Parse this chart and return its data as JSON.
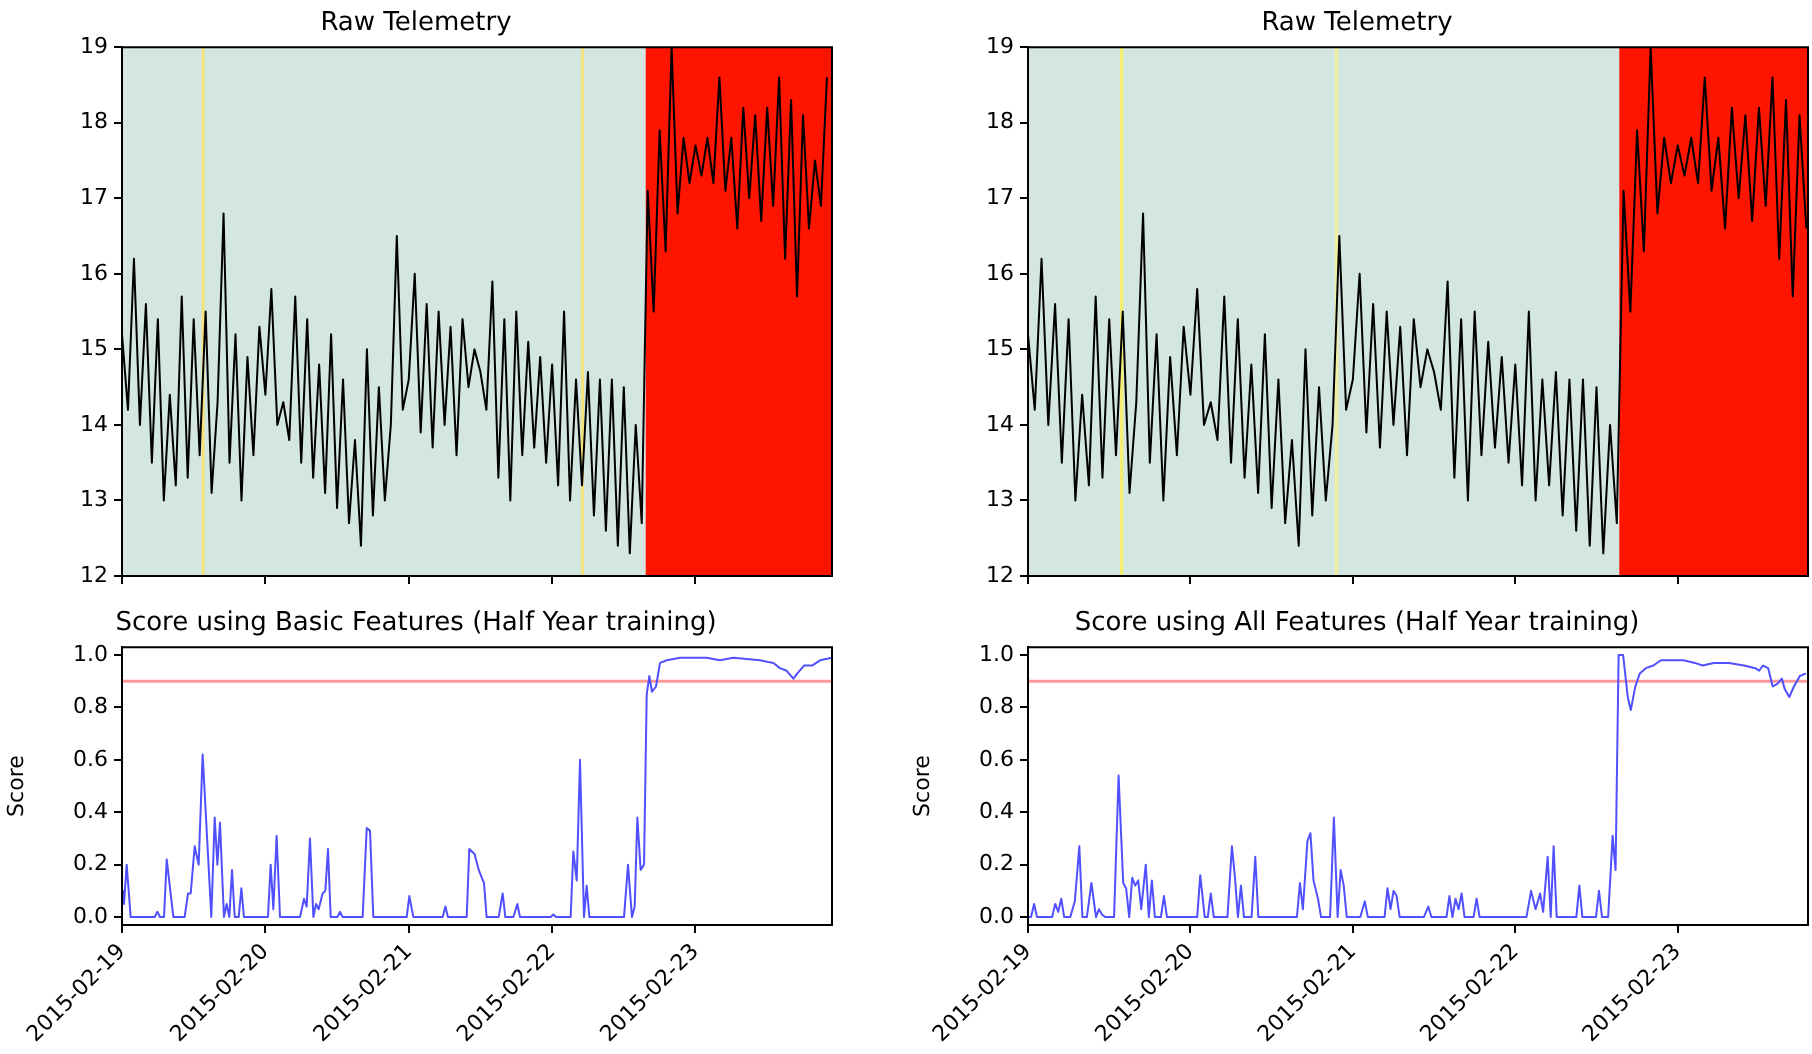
{
  "chart_data": [
    {
      "type": "line",
      "title": "Raw Telemetry",
      "marker": "none",
      "tick_labels": "y",
      "grid": false,
      "legend": false,
      "x": [
        "2015-02-19T00:00",
        "2015-02-19T01:00",
        "2015-02-19T02:00",
        "2015-02-19T03:00",
        "2015-02-19T04:00",
        "2015-02-19T05:00",
        "2015-02-19T06:00",
        "2015-02-19T07:00",
        "2015-02-19T08:00",
        "2015-02-19T09:00",
        "2015-02-19T10:00",
        "2015-02-19T11:00",
        "2015-02-19T12:00",
        "2015-02-19T13:00",
        "2015-02-19T14:00",
        "2015-02-19T15:00",
        "2015-02-19T16:00",
        "2015-02-19T17:00",
        "2015-02-19T18:00",
        "2015-02-19T19:00",
        "2015-02-19T20:00",
        "2015-02-19T21:00",
        "2015-02-19T22:00",
        "2015-02-19T23:00",
        "2015-02-20T00:00",
        "2015-02-20T01:00",
        "2015-02-20T02:00",
        "2015-02-20T03:00",
        "2015-02-20T04:00",
        "2015-02-20T05:00",
        "2015-02-20T06:00",
        "2015-02-20T07:00",
        "2015-02-20T08:00",
        "2015-02-20T09:00",
        "2015-02-20T10:00",
        "2015-02-20T11:00",
        "2015-02-20T12:00",
        "2015-02-20T13:00",
        "2015-02-20T14:00",
        "2015-02-20T15:00",
        "2015-02-20T16:00",
        "2015-02-20T17:00",
        "2015-02-20T18:00",
        "2015-02-20T19:00",
        "2015-02-20T20:00",
        "2015-02-20T21:00",
        "2015-02-20T22:00",
        "2015-02-20T23:00",
        "2015-02-21T00:00",
        "2015-02-21T01:00",
        "2015-02-21T02:00",
        "2015-02-21T03:00",
        "2015-02-21T04:00",
        "2015-02-21T05:00",
        "2015-02-21T06:00",
        "2015-02-21T07:00",
        "2015-02-21T08:00",
        "2015-02-21T09:00",
        "2015-02-21T10:00",
        "2015-02-21T11:00",
        "2015-02-21T12:00",
        "2015-02-21T13:00",
        "2015-02-21T14:00",
        "2015-02-21T15:00",
        "2015-02-21T16:00",
        "2015-02-21T17:00",
        "2015-02-21T18:00",
        "2015-02-21T19:00",
        "2015-02-21T20:00",
        "2015-02-21T21:00",
        "2015-02-21T22:00",
        "2015-02-21T23:00",
        "2015-02-22T00:00",
        "2015-02-22T01:00",
        "2015-02-22T02:00",
        "2015-02-22T03:00",
        "2015-02-22T04:00",
        "2015-02-22T05:00",
        "2015-02-22T06:00",
        "2015-02-22T07:00",
        "2015-02-22T08:00",
        "2015-02-22T09:00",
        "2015-02-22T10:00",
        "2015-02-22T11:00",
        "2015-02-22T12:00",
        "2015-02-22T13:00",
        "2015-02-22T14:00",
        "2015-02-22T15:00",
        "2015-02-22T16:00",
        "2015-02-22T17:00",
        "2015-02-22T18:00",
        "2015-02-22T19:00",
        "2015-02-22T20:00",
        "2015-02-22T21:00",
        "2015-02-22T22:00",
        "2015-02-22T23:00",
        "2015-02-23T00:00",
        "2015-02-23T01:00",
        "2015-02-23T02:00",
        "2015-02-23T03:00",
        "2015-02-23T04:00",
        "2015-02-23T05:00",
        "2015-02-23T06:00",
        "2015-02-23T07:00",
        "2015-02-23T08:00",
        "2015-02-23T09:00",
        "2015-02-23T10:00",
        "2015-02-23T11:00",
        "2015-02-23T12:00",
        "2015-02-23T13:00",
        "2015-02-23T14:00",
        "2015-02-23T15:00",
        "2015-02-23T16:00",
        "2015-02-23T17:00",
        "2015-02-23T18:00",
        "2015-02-23T19:00",
        "2015-02-23T20:00",
        "2015-02-23T21:00",
        "2015-02-23T22:00"
      ],
      "series": [
        {
          "color": "#000000",
          "values": [
            15.2,
            14.2,
            16.2,
            14.0,
            15.6,
            13.5,
            15.4,
            13.0,
            14.4,
            13.2,
            15.7,
            13.3,
            15.4,
            13.6,
            15.5,
            13.1,
            14.3,
            16.8,
            13.5,
            15.2,
            13.0,
            14.9,
            13.6,
            15.3,
            14.4,
            15.8,
            14.0,
            14.3,
            13.8,
            15.7,
            13.5,
            15.4,
            13.3,
            14.8,
            13.1,
            15.2,
            12.9,
            14.6,
            12.7,
            13.8,
            12.4,
            15.0,
            12.8,
            14.5,
            13.0,
            14.0,
            16.5,
            14.2,
            14.6,
            16.0,
            13.9,
            15.6,
            13.7,
            15.5,
            14.0,
            15.3,
            13.6,
            15.4,
            14.5,
            15.0,
            14.7,
            14.2,
            15.9,
            13.3,
            15.4,
            13.0,
            15.5,
            13.6,
            15.1,
            13.7,
            14.9,
            13.5,
            14.8,
            13.2,
            15.5,
            13.0,
            14.6,
            13.2,
            14.7,
            12.8,
            14.6,
            12.6,
            14.6,
            12.4,
            14.5,
            12.3,
            14.0,
            12.7,
            17.1,
            15.5,
            17.9,
            16.3,
            19.0,
            16.8,
            17.8,
            17.2,
            17.7,
            17.3,
            17.8,
            17.2,
            18.6,
            17.1,
            17.8,
            16.6,
            18.2,
            17.0,
            18.1,
            16.7,
            18.2,
            16.9,
            18.6,
            16.2,
            18.3,
            15.7,
            18.1,
            16.6,
            17.5,
            16.9,
            18.6
          ]
        }
      ],
      "bands": [
        {
          "axis": "x",
          "from": "2015-02-19T00:00",
          "to": "2015-02-22T15:40",
          "color": "#d3e6e2"
        },
        {
          "axis": "x",
          "from": "2015-02-19T13:20",
          "to": "2015-02-19T13:50",
          "color": "#f5e27a"
        },
        {
          "axis": "x",
          "from": "2015-02-22T04:50",
          "to": "2015-02-22T05:20",
          "color": "#f5e27a"
        },
        {
          "axis": "x",
          "from": "2015-02-22T15:40",
          "to": "2015-02-23T22:51",
          "color": "#ff1400"
        }
      ],
      "xlim": [
        "2015-02-19T00:00",
        "2015-02-23T22:51"
      ],
      "xticks": [
        "2015-02-19",
        "2015-02-20",
        "2015-02-21",
        "2015-02-22",
        "2015-02-23"
      ],
      "ylim": [
        12,
        19
      ],
      "yticks": [
        12,
        13,
        14,
        15,
        16,
        17,
        18,
        19
      ]
    },
    {
      "type": "line",
      "title": "Raw Telemetry",
      "marker": "none",
      "tick_labels": "y",
      "grid": false,
      "legend": false,
      "x": [
        "2015-02-19T00:00",
        "2015-02-19T01:00",
        "2015-02-19T02:00",
        "2015-02-19T03:00",
        "2015-02-19T04:00",
        "2015-02-19T05:00",
        "2015-02-19T06:00",
        "2015-02-19T07:00",
        "2015-02-19T08:00",
        "2015-02-19T09:00",
        "2015-02-19T10:00",
        "2015-02-19T11:00",
        "2015-02-19T12:00",
        "2015-02-19T13:00",
        "2015-02-19T14:00",
        "2015-02-19T15:00",
        "2015-02-19T16:00",
        "2015-02-19T17:00",
        "2015-02-19T18:00",
        "2015-02-19T19:00",
        "2015-02-19T20:00",
        "2015-02-19T21:00",
        "2015-02-19T22:00",
        "2015-02-19T23:00",
        "2015-02-20T00:00",
        "2015-02-20T01:00",
        "2015-02-20T02:00",
        "2015-02-20T03:00",
        "2015-02-20T04:00",
        "2015-02-20T05:00",
        "2015-02-20T06:00",
        "2015-02-20T07:00",
        "2015-02-20T08:00",
        "2015-02-20T09:00",
        "2015-02-20T10:00",
        "2015-02-20T11:00",
        "2015-02-20T12:00",
        "2015-02-20T13:00",
        "2015-02-20T14:00",
        "2015-02-20T15:00",
        "2015-02-20T16:00",
        "2015-02-20T17:00",
        "2015-02-20T18:00",
        "2015-02-20T19:00",
        "2015-02-20T20:00",
        "2015-02-20T21:00",
        "2015-02-20T22:00",
        "2015-02-20T23:00",
        "2015-02-21T00:00",
        "2015-02-21T01:00",
        "2015-02-21T02:00",
        "2015-02-21T03:00",
        "2015-02-21T04:00",
        "2015-02-21T05:00",
        "2015-02-21T06:00",
        "2015-02-21T07:00",
        "2015-02-21T08:00",
        "2015-02-21T09:00",
        "2015-02-21T10:00",
        "2015-02-21T11:00",
        "2015-02-21T12:00",
        "2015-02-21T13:00",
        "2015-02-21T14:00",
        "2015-02-21T15:00",
        "2015-02-21T16:00",
        "2015-02-21T17:00",
        "2015-02-21T18:00",
        "2015-02-21T19:00",
        "2015-02-21T20:00",
        "2015-02-21T21:00",
        "2015-02-21T22:00",
        "2015-02-21T23:00",
        "2015-02-22T00:00",
        "2015-02-22T01:00",
        "2015-02-22T02:00",
        "2015-02-22T03:00",
        "2015-02-22T04:00",
        "2015-02-22T05:00",
        "2015-02-22T06:00",
        "2015-02-22T07:00",
        "2015-02-22T08:00",
        "2015-02-22T09:00",
        "2015-02-22T10:00",
        "2015-02-22T11:00",
        "2015-02-22T12:00",
        "2015-02-22T13:00",
        "2015-02-22T14:00",
        "2015-02-22T15:00",
        "2015-02-22T16:00",
        "2015-02-22T17:00",
        "2015-02-22T18:00",
        "2015-02-22T19:00",
        "2015-02-22T20:00",
        "2015-02-22T21:00",
        "2015-02-22T22:00",
        "2015-02-22T23:00",
        "2015-02-23T00:00",
        "2015-02-23T01:00",
        "2015-02-23T02:00",
        "2015-02-23T03:00",
        "2015-02-23T04:00",
        "2015-02-23T05:00",
        "2015-02-23T06:00",
        "2015-02-23T07:00",
        "2015-02-23T08:00",
        "2015-02-23T09:00",
        "2015-02-23T10:00",
        "2015-02-23T11:00",
        "2015-02-23T12:00",
        "2015-02-23T13:00",
        "2015-02-23T14:00",
        "2015-02-23T15:00",
        "2015-02-23T16:00",
        "2015-02-23T17:00",
        "2015-02-23T18:00",
        "2015-02-23T19:00"
      ],
      "series": [
        {
          "color": "#000000",
          "values": [
            15.2,
            14.2,
            16.2,
            14.0,
            15.6,
            13.5,
            15.4,
            13.0,
            14.4,
            13.2,
            15.7,
            13.3,
            15.4,
            13.6,
            15.5,
            13.1,
            14.3,
            16.8,
            13.5,
            15.2,
            13.0,
            14.9,
            13.6,
            15.3,
            14.4,
            15.8,
            14.0,
            14.3,
            13.8,
            15.7,
            13.5,
            15.4,
            13.3,
            14.8,
            13.1,
            15.2,
            12.9,
            14.6,
            12.7,
            13.8,
            12.4,
            15.0,
            12.8,
            14.5,
            13.0,
            14.0,
            16.5,
            14.2,
            14.6,
            16.0,
            13.9,
            15.6,
            13.7,
            15.5,
            14.0,
            15.3,
            13.6,
            15.4,
            14.5,
            15.0,
            14.7,
            14.2,
            15.9,
            13.3,
            15.4,
            13.0,
            15.5,
            13.6,
            15.1,
            13.7,
            14.9,
            13.5,
            14.8,
            13.2,
            15.5,
            13.0,
            14.6,
            13.2,
            14.7,
            12.8,
            14.6,
            12.6,
            14.6,
            12.4,
            14.5,
            12.3,
            14.0,
            12.7,
            17.1,
            15.5,
            17.9,
            16.3,
            19.0,
            16.8,
            17.8,
            17.2,
            17.7,
            17.3,
            17.8,
            17.2,
            18.6,
            17.1,
            17.8,
            16.6,
            18.2,
            17.0,
            18.1,
            16.7,
            18.2,
            16.9,
            18.6,
            16.2,
            18.3,
            15.7,
            18.1,
            16.6
          ]
        }
      ],
      "bands": [
        {
          "axis": "x",
          "from": "2015-02-19T00:00",
          "to": "2015-02-22T15:22",
          "color": "#d3e6e2"
        },
        {
          "axis": "x",
          "from": "2015-02-19T13:35",
          "to": "2015-02-19T14:05",
          "color": "#f5ee70"
        },
        {
          "axis": "x",
          "from": "2015-02-20T21:20",
          "to": "2015-02-20T21:50",
          "color": "#f0f0a0"
        },
        {
          "axis": "x",
          "from": "2015-02-22T15:22",
          "to": "2015-02-23T19:15",
          "color": "#ff1400"
        }
      ],
      "xlim": [
        "2015-02-19T00:00",
        "2015-02-23T19:15"
      ],
      "xticks": [
        "2015-02-19",
        "2015-02-20",
        "2015-02-21",
        "2015-02-22",
        "2015-02-23"
      ],
      "ylim": [
        12,
        19
      ],
      "yticks": [
        12,
        13,
        14,
        15,
        16,
        17,
        18,
        19
      ]
    },
    {
      "type": "line",
      "title": "Score using Basic Features (Half Year training)",
      "ylabel": "Score",
      "marker": "none",
      "grid": false,
      "legend": false,
      "series": [
        {
          "color": "#5050ff",
          "x": [
            "2015-02-19T00:00",
            "2015-02-19T00:20",
            "2015-02-19T00:47",
            "2015-02-19T01:27",
            "2015-02-19T05:28",
            "2015-02-19T05:55",
            "2015-02-19T06:22",
            "2015-02-19T07:02",
            "2015-02-19T07:29",
            "2015-02-19T08:36",
            "2015-02-19T10:29",
            "2015-02-19T11:03",
            "2015-02-19T11:30",
            "2015-02-19T12:10",
            "2015-02-19T12:50",
            "2015-02-19T13:30",
            "2015-02-19T14:57",
            "2015-02-19T15:31",
            "2015-02-19T15:58",
            "2015-02-19T16:24",
            "2015-02-19T17:04",
            "2015-02-19T17:31",
            "2015-02-19T17:58",
            "2015-02-19T18:25",
            "2015-02-19T18:52",
            "2015-02-19T19:32",
            "2015-02-19T19:59",
            "2015-02-19T20:25",
            "2015-02-20T00:26",
            "2015-02-20T00:53",
            "2015-02-20T01:20",
            "2015-02-20T01:53",
            "2015-02-20T02:27",
            "2015-02-20T05:48",
            "2015-02-20T06:28",
            "2015-02-20T06:55",
            "2015-02-20T07:28",
            "2015-02-20T08:02",
            "2015-02-20T08:29",
            "2015-02-20T08:55",
            "2015-02-20T09:35",
            "2015-02-20T10:02",
            "2015-02-20T10:29",
            "2015-02-20T10:56",
            "2015-02-20T12:03",
            "2015-02-20T12:29",
            "2015-02-20T12:56",
            "2015-02-20T16:17",
            "2015-02-20T16:58",
            "2015-02-20T17:31",
            "2015-02-20T18:04",
            "2015-02-20T23:39",
            "2015-02-21T00:06",
            "2015-02-21T00:46",
            "2015-02-21T05:41",
            "2015-02-21T06:08",
            "2015-02-21T06:34",
            "2015-02-21T09:42",
            "2015-02-21T10:08",
            "2015-02-21T11:02",
            "2015-02-21T11:43",
            "2015-02-21T12:36",
            "2015-02-21T13:02",
            "2015-02-21T15:03",
            "2015-02-21T15:43",
            "2015-02-21T16:10",
            "2015-02-21T17:31",
            "2015-02-21T18:11",
            "2015-02-21T18:37",
            "2015-02-21T23:46",
            "2015-02-22T00:12",
            "2015-02-22T00:39",
            "2015-02-22T03:06",
            "2015-02-22T03:33",
            "2015-02-22T04:07",
            "2015-02-22T04:40",
            "2015-02-22T05:20",
            "2015-02-22T05:47",
            "2015-02-22T06:14",
            "2015-02-22T12:02",
            "2015-02-22T12:42",
            "2015-02-22T13:22",
            "2015-02-22T13:49",
            "2015-02-22T14:16",
            "2015-02-22T14:49",
            "2015-02-22T15:23",
            "2015-02-22T15:50",
            "2015-02-22T16:16",
            "2015-02-22T16:43",
            "2015-02-22T17:23",
            "2015-02-22T18:04",
            "2015-02-22T19:11",
            "2015-02-22T21:25",
            "2015-02-23T01:52",
            "2015-02-23T04:06",
            "2015-02-23T06:20",
            "2015-02-23T10:48",
            "2015-02-23T13:02",
            "2015-02-23T14:09",
            "2015-02-23T15:16",
            "2015-02-23T16:23",
            "2015-02-23T17:03",
            "2015-02-23T18:10",
            "2015-02-23T19:30",
            "2015-02-23T20:51",
            "2015-02-23T22:51"
          ],
          "values": [
            0.1,
            0.05,
            0.2,
            0,
            0,
            0.02,
            0,
            0,
            0.22,
            0,
            0,
            0.09,
            0.09,
            0.27,
            0.2,
            0.62,
            0,
            0.38,
            0.2,
            0.36,
            0,
            0.05,
            0,
            0.18,
            0,
            0,
            0.11,
            0,
            0,
            0.2,
            0.03,
            0.31,
            0,
            0,
            0.07,
            0.04,
            0.3,
            0,
            0.05,
            0.03,
            0.09,
            0.1,
            0.26,
            0,
            0,
            0.02,
            0,
            0,
            0.34,
            0.33,
            0,
            0,
            0.08,
            0,
            0,
            0.04,
            0,
            0,
            0.26,
            0.24,
            0.18,
            0.13,
            0,
            0,
            0.09,
            0,
            0,
            0.05,
            0,
            0,
            0.01,
            0,
            0,
            0.25,
            0.14,
            0.6,
            0,
            0.12,
            0,
            0,
            0.2,
            0,
            0.04,
            0.38,
            0.18,
            0.2,
            0.85,
            0.92,
            0.86,
            0.88,
            0.97,
            0.98,
            0.99,
            0.99,
            0.98,
            0.99,
            0.98,
            0.97,
            0.95,
            0.94,
            0.91,
            0.93,
            0.96,
            0.96,
            0.98,
            0.99
          ]
        }
      ],
      "ref_lines": [
        {
          "axis": "y",
          "value": 0.9,
          "color": "#ff9999"
        }
      ],
      "xlim": [
        "2015-02-19T00:00",
        "2015-02-23T22:51"
      ],
      "xticks": [
        "2015-02-19",
        "2015-02-20",
        "2015-02-21",
        "2015-02-22",
        "2015-02-23"
      ],
      "ylim": [
        -0.03,
        1.03
      ],
      "yticks": [
        {
          "value": 0,
          "label": "0.0"
        },
        {
          "value": 0.2,
          "label": "0.2"
        },
        {
          "value": 0.4,
          "label": "0.4"
        },
        {
          "value": 0.6,
          "label": "0.6"
        },
        {
          "value": 0.8,
          "label": "0.8"
        },
        {
          "value": 1,
          "label": "1.0"
        }
      ]
    },
    {
      "type": "line",
      "title": "Score using All Features (Half Year training)",
      "ylabel": "Score",
      "marker": "none",
      "grid": false,
      "legend": false,
      "series": [
        {
          "color": "#5050ff",
          "x": [
            "2015-02-19T00:00",
            "2015-02-19T00:27",
            "2015-02-19T00:54",
            "2015-02-19T01:20",
            "2015-02-19T03:34",
            "2015-02-19T04:01",
            "2015-02-19T04:28",
            "2015-02-19T04:55",
            "2015-02-19T05:21",
            "2015-02-19T06:15",
            "2015-02-19T06:55",
            "2015-02-19T07:35",
            "2015-02-19T08:02",
            "2015-02-19T08:42",
            "2015-02-19T09:22",
            "2015-02-19T10:03",
            "2015-02-19T10:29",
            "2015-02-19T10:56",
            "2015-02-19T11:23",
            "2015-02-19T12:43",
            "2015-02-19T13:23",
            "2015-02-19T14:04",
            "2015-02-19T14:30",
            "2015-02-19T14:57",
            "2015-02-19T15:24",
            "2015-02-19T15:51",
            "2015-02-19T16:17",
            "2015-02-19T16:44",
            "2015-02-19T17:24",
            "2015-02-19T17:51",
            "2015-02-19T18:18",
            "2015-02-19T18:45",
            "2015-02-19T19:38",
            "2015-02-19T20:05",
            "2015-02-19T20:32",
            "2015-02-20T01:00",
            "2015-02-20T01:27",
            "2015-02-20T02:07",
            "2015-02-20T02:34",
            "2015-02-20T03:00",
            "2015-02-20T03:27",
            "2015-02-20T05:28",
            "2015-02-20T06:08",
            "2015-02-20T06:35",
            "2015-02-20T07:01",
            "2015-02-20T07:28",
            "2015-02-20T07:55",
            "2015-02-20T09:02",
            "2015-02-20T09:35",
            "2015-02-20T10:02",
            "2015-02-20T15:44",
            "2015-02-20T16:11",
            "2015-02-20T16:37",
            "2015-02-20T17:17",
            "2015-02-20T17:44",
            "2015-02-20T18:11",
            "2015-02-20T18:51",
            "2015-02-20T19:18",
            "2015-02-20T20:38",
            "2015-02-20T21:12",
            "2015-02-20T21:45",
            "2015-02-20T22:12",
            "2015-02-20T22:39",
            "2015-02-20T23:06",
            "2015-02-21T01:06",
            "2015-02-21T01:46",
            "2015-02-21T02:13",
            "2015-02-21T04:41",
            "2015-02-21T05:07",
            "2015-02-21T05:34",
            "2015-02-21T06:01",
            "2015-02-21T06:28",
            "2015-02-21T06:55",
            "2015-02-21T10:29",
            "2015-02-21T11:09",
            "2015-02-21T11:36",
            "2015-02-21T13:50",
            "2015-02-21T14:16",
            "2015-02-21T14:43",
            "2015-02-21T15:10",
            "2015-02-21T15:37",
            "2015-02-21T16:04",
            "2015-02-21T16:30",
            "2015-02-21T17:50",
            "2015-02-21T18:17",
            "2015-02-21T18:44",
            "2015-02-22T01:39",
            "2015-02-22T02:20",
            "2015-02-22T03:00",
            "2015-02-22T03:40",
            "2015-02-22T04:07",
            "2015-02-22T04:47",
            "2015-02-22T05:14",
            "2015-02-22T05:40",
            "2015-02-22T06:07",
            "2015-02-22T09:01",
            "2015-02-22T09:28",
            "2015-02-22T09:55",
            "2015-02-22T11:55",
            "2015-02-22T12:22",
            "2015-02-22T12:49",
            "2015-02-22T13:43",
            "2015-02-22T14:23",
            "2015-02-22T14:49",
            "2015-02-22T15:16",
            "2015-02-22T15:56",
            "2015-02-22T16:37",
            "2015-02-22T17:04",
            "2015-02-22T17:44",
            "2015-02-22T18:24",
            "2015-02-22T19:17",
            "2015-02-22T20:24",
            "2015-02-22T21:31",
            "2015-02-23T00:52",
            "2015-02-23T02:32",
            "2015-02-23T03:40",
            "2015-02-23T05:20",
            "2015-02-23T07:34",
            "2015-02-23T09:48",
            "2015-02-23T11:28",
            "2015-02-23T12:02",
            "2015-02-23T12:35",
            "2015-02-23T13:22",
            "2015-02-23T14:02",
            "2015-02-23T14:43",
            "2015-02-23T15:23",
            "2015-02-23T15:49",
            "2015-02-23T16:29",
            "2015-02-23T17:10",
            "2015-02-23T18:03",
            "2015-02-23T18:57"
          ],
          "values": [
            0,
            0,
            0.05,
            0,
            0,
            0.05,
            0.02,
            0.07,
            0,
            0,
            0.06,
            0.27,
            0,
            0,
            0.13,
            0,
            0.03,
            0.01,
            0,
            0,
            0.54,
            0.13,
            0.11,
            0,
            0.15,
            0.12,
            0.14,
            0.03,
            0.2,
            0,
            0.14,
            0,
            0,
            0.08,
            0,
            0,
            0.16,
            0,
            0,
            0.09,
            0,
            0,
            0.27,
            0.15,
            0,
            0.12,
            0,
            0,
            0.23,
            0,
            0,
            0.13,
            0.03,
            0.29,
            0.32,
            0.14,
            0.07,
            0,
            0,
            0.38,
            0,
            0.18,
            0.12,
            0,
            0,
            0.06,
            0,
            0,
            0.11,
            0.03,
            0.1,
            0.08,
            0,
            0,
            0.04,
            0,
            0,
            0.08,
            0,
            0.07,
            0.03,
            0.09,
            0,
            0,
            0.07,
            0,
            0,
            0.1,
            0.03,
            0.09,
            0.02,
            0.23,
            0,
            0.27,
            0,
            0,
            0.12,
            0,
            0,
            0.1,
            0,
            0,
            0.31,
            0.18,
            1.0,
            1.0,
            0.84,
            0.79,
            0.88,
            0.93,
            0.95,
            0.96,
            0.98,
            0.98,
            0.97,
            0.96,
            0.97,
            0.97,
            0.96,
            0.95,
            0.94,
            0.96,
            0.95,
            0.88,
            0.89,
            0.91,
            0.87,
            0.84,
            0.88,
            0.92,
            0.93
          ]
        }
      ],
      "ref_lines": [
        {
          "axis": "y",
          "value": 0.9,
          "color": "#ff9999"
        }
      ],
      "xlim": [
        "2015-02-19T00:00",
        "2015-02-23T19:15"
      ],
      "xticks": [
        "2015-02-19",
        "2015-02-20",
        "2015-02-21",
        "2015-02-22",
        "2015-02-23"
      ],
      "ylim": [
        -0.03,
        1.03
      ],
      "yticks": [
        {
          "value": 0,
          "label": "0.0"
        },
        {
          "value": 0.2,
          "label": "0.2"
        },
        {
          "value": 0.4,
          "label": "0.4"
        },
        {
          "value": 0.6,
          "label": "0.6"
        },
        {
          "value": 0.8,
          "label": "0.8"
        },
        {
          "value": 1,
          "label": "1.0"
        }
      ]
    }
  ]
}
